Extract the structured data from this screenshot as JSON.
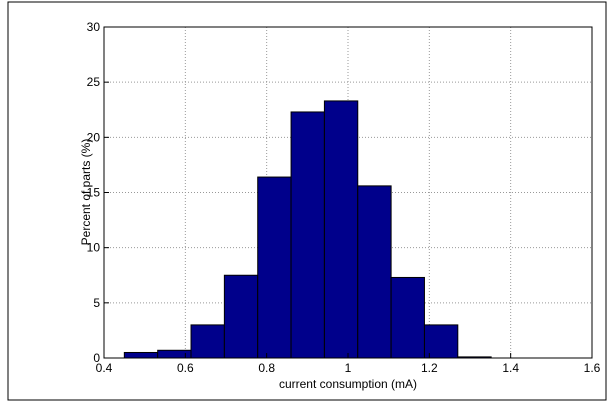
{
  "chart_data": {
    "type": "histogram",
    "xlabel": "current consumption (mA)",
    "ylabel": "Percent of parts (%)",
    "bins": [
      0.45,
      0.532,
      0.614,
      0.696,
      0.778,
      0.86,
      0.942,
      1.024,
      1.106,
      1.188,
      1.27,
      1.352
    ],
    "values": [
      0.5,
      0.7,
      3,
      7.5,
      16.4,
      22.3,
      23.3,
      15.6,
      7.3,
      3,
      0.1
    ],
    "color": "#00008b",
    "xlim": [
      0.4,
      1.6
    ],
    "xticks": [
      0.4,
      0.6,
      0.8,
      1,
      1.2,
      1.4,
      1.6
    ],
    "ylim": [
      0,
      30
    ],
    "yticks": [
      0,
      5,
      10,
      15,
      20,
      25,
      30
    ],
    "grid": true
  }
}
